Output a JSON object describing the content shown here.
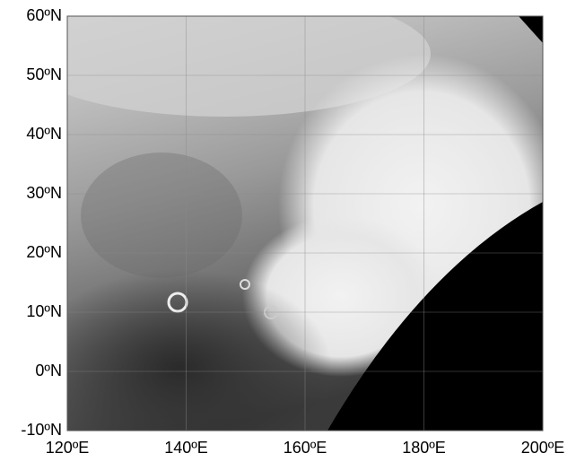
{
  "chart_data": {
    "type": "map",
    "xlim": [
      120,
      200
    ],
    "ylim": [
      -10,
      60
    ],
    "xticks": [
      {
        "value": 120,
        "label": "120ºE"
      },
      {
        "value": 140,
        "label": "140ºE"
      },
      {
        "value": 160,
        "label": "160ºE"
      },
      {
        "value": 180,
        "label": "180ºE"
      },
      {
        "value": 200,
        "label": "200ºE"
      }
    ],
    "yticks": [
      {
        "value": -10,
        "label": "-10ºN"
      },
      {
        "value": 0,
        "label": "0ºN"
      },
      {
        "value": 10,
        "label": "10ºN"
      },
      {
        "value": 20,
        "label": "20ºN"
      },
      {
        "value": 30,
        "label": "30ºN"
      },
      {
        "value": 40,
        "label": "40ºN"
      },
      {
        "value": 50,
        "label": "50ºN"
      },
      {
        "value": 60,
        "label": "60ºN"
      }
    ],
    "grid": true
  }
}
